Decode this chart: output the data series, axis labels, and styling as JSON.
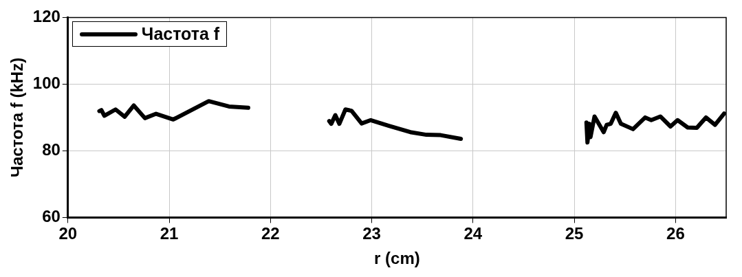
{
  "chart_data": {
    "type": "line",
    "xlabel": "r (cm)",
    "ylabel": "Частота f (kHz)",
    "xlim": [
      20,
      26.5
    ],
    "xticks": [
      20,
      21,
      22,
      23,
      24,
      25,
      26
    ],
    "ylim": [
      60,
      120
    ],
    "yticks": [
      60,
      80,
      100,
      120
    ],
    "grid": true,
    "legend": "top left",
    "marker": "none",
    "line_style": "solid",
    "series": [
      {
        "name": "Частота f",
        "color": "#000000",
        "x": [
          20.31,
          20.33,
          20.36,
          20.47,
          20.56,
          20.65,
          20.76,
          20.87,
          21.04,
          21.39,
          21.59,
          21.78,
          22.2,
          22.58,
          22.6,
          22.64,
          22.68,
          22.74,
          22.8,
          22.9,
          22.99,
          23.17,
          23.38,
          23.54,
          23.68,
          23.88,
          24.5,
          25.12,
          25.13,
          25.15,
          25.16,
          25.2,
          25.29,
          25.32,
          25.36,
          25.41,
          25.46,
          25.58,
          25.7,
          25.76,
          25.85,
          25.95,
          26.02,
          26.12,
          26.21,
          26.3,
          26.39,
          26.48
        ],
        "values": [
          91.9,
          92.2,
          90.5,
          92.4,
          90.2,
          93.6,
          89.8,
          91.1,
          89.4,
          94.9,
          93.3,
          92.9,
          null,
          88.9,
          88.1,
          90.7,
          88.1,
          92.4,
          92,
          88.2,
          89.2,
          87.5,
          85.6,
          84.8,
          84.7,
          83.6,
          null,
          88.5,
          82.5,
          88.1,
          84.1,
          90.3,
          85.6,
          87.8,
          88.1,
          91.4,
          88.1,
          86.5,
          90,
          89.2,
          90.3,
          87.3,
          89.2,
          87,
          86.9,
          90,
          87.8,
          91.2
        ]
      }
    ]
  }
}
